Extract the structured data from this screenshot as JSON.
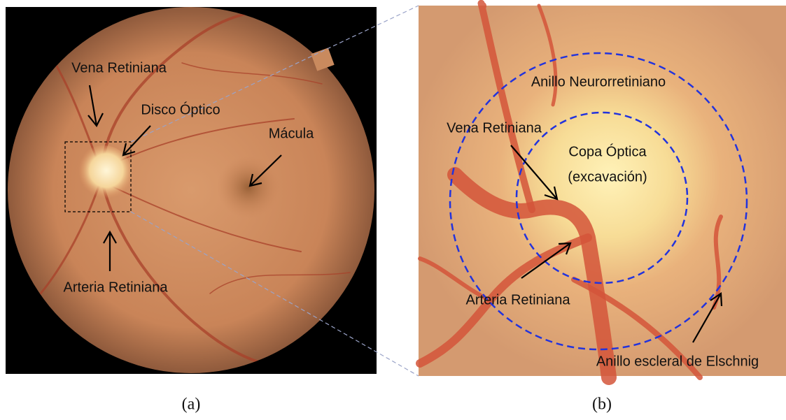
{
  "panel_a": {
    "labels": [
      "Vena Retiniana",
      "Disco Óptico",
      "Mácula",
      "Arteria Retiniana"
    ],
    "caption": "(a)"
  },
  "panel_b": {
    "labels": [
      "Anillo Neurorretiniano",
      "Vena Retiniana",
      "Copa Óptica",
      "(excavación)",
      "Arteria Retiniana",
      "Anillo escleral de Elschnig"
    ],
    "caption": "(b)"
  }
}
